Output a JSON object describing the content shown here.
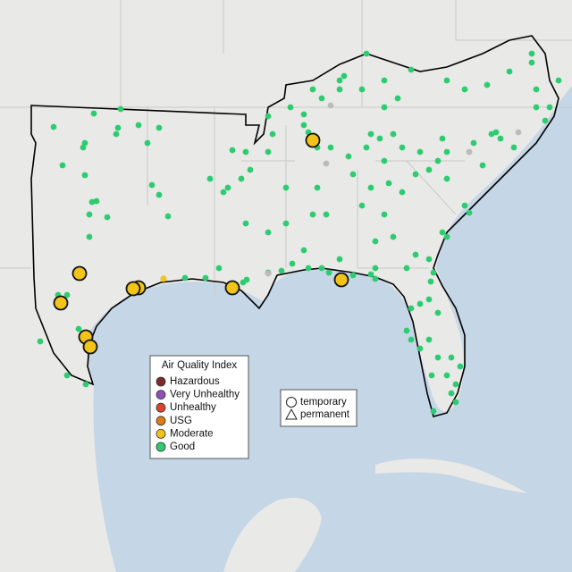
{
  "legend": {
    "title": "Air Quality Index",
    "items": [
      {
        "label": "Hazardous",
        "color": "#7e2a2a"
      },
      {
        "label": "Very Unhealthy",
        "color": "#8f4fb5"
      },
      {
        "label": "Unhealthy",
        "color": "#e0412f"
      },
      {
        "label": "USG",
        "color": "#e07b16"
      },
      {
        "label": "Moderate",
        "color": "#f2c318"
      },
      {
        "label": "Good",
        "color": "#2ecc71"
      }
    ]
  },
  "monitor_legend": {
    "items": [
      {
        "label": "temporary",
        "shape": "circle"
      },
      {
        "label": "permanent",
        "shape": "triangle"
      }
    ]
  }
}
